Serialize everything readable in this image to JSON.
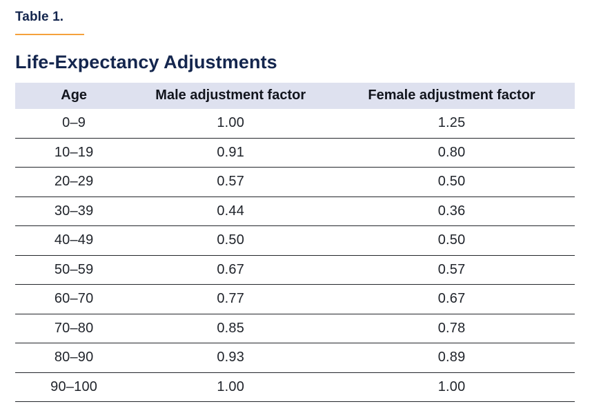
{
  "page": {
    "table_label": "Table 1.",
    "title": "Life-Expectancy Adjustments"
  },
  "colors": {
    "accent_orange": "#f5a13c",
    "heading_navy": "#14264e",
    "header_row_bg": "#dee1ef",
    "body_text": "#20242b",
    "row_rule": "#212429"
  },
  "table": {
    "columns": [
      "Age",
      "Male adjustment factor",
      "Female adjustment factor"
    ],
    "rows": [
      [
        "0–9",
        "1.00",
        "1.25"
      ],
      [
        "10–19",
        "0.91",
        "0.80"
      ],
      [
        "20–29",
        "0.57",
        "0.50"
      ],
      [
        "30–39",
        "0.44",
        "0.36"
      ],
      [
        "40–49",
        "0.50",
        "0.50"
      ],
      [
        "50–59",
        "0.67",
        "0.57"
      ],
      [
        "60–70",
        "0.77",
        "0.67"
      ],
      [
        "70–80",
        "0.85",
        "0.78"
      ],
      [
        "80–90",
        "0.93",
        "0.89"
      ],
      [
        "90–100",
        "1.00",
        "1.00"
      ]
    ]
  },
  "chart_data": {
    "type": "table",
    "title": "Life-Expectancy Adjustments",
    "columns": [
      "Age",
      "Male adjustment factor",
      "Female adjustment factor"
    ],
    "rows": [
      [
        "0–9",
        1.0,
        1.25
      ],
      [
        "10–19",
        0.91,
        0.8
      ],
      [
        "20–29",
        0.57,
        0.5
      ],
      [
        "30–39",
        0.44,
        0.36
      ],
      [
        "40–49",
        0.5,
        0.5
      ],
      [
        "50–59",
        0.67,
        0.57
      ],
      [
        "60–70",
        0.77,
        0.67
      ],
      [
        "70–80",
        0.85,
        0.78
      ],
      [
        "80–90",
        0.93,
        0.89
      ],
      [
        "90–100",
        1.0,
        1.0
      ]
    ]
  }
}
